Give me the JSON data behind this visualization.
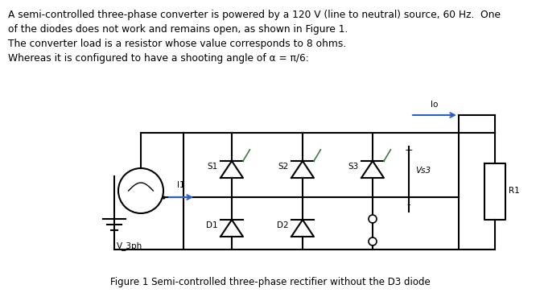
{
  "bg_color": "#ffffff",
  "text_color": "#000000",
  "line1": "A semi-controlled three-phase converter is powered by a 120 V (line to neutral) source, 60 Hz.  One",
  "line2": "of the diodes does not work and remains open, as shown in Figure 1.",
  "line3": "The converter load is a resistor whose value corresponds to 8 ohms.",
  "line4": "Whereas it is configured to have a shooting angle of α = π/6:",
  "caption": "Figure 1 Semi-controlled three-phase rectifier without the D3 diode",
  "figw": 6.71,
  "figh": 3.69,
  "dpi": 100,
  "text_fs": 8.8,
  "caption_fs": 8.5,
  "lw": 1.5,
  "scr_fs": 7.5,
  "gate_color": "#3a7d44",
  "arrow_color": "#2a5fcb"
}
